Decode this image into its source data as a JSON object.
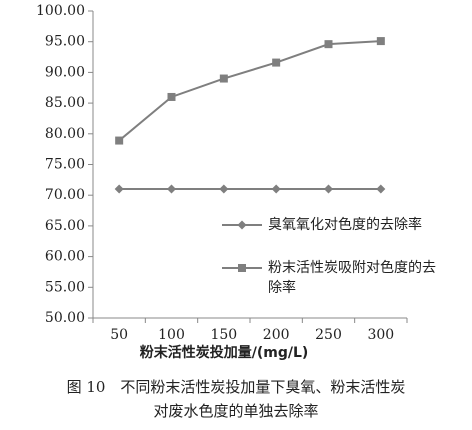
{
  "chart_data": {
    "type": "line",
    "categories": [
      "50",
      "100",
      "150",
      "200",
      "250",
      "300"
    ],
    "series": [
      {
        "name": "臭氧氧化对色度的去除率",
        "color": "#7f7f7f",
        "marker": "diamond",
        "values": [
          71.0,
          71.0,
          71.0,
          71.0,
          71.0,
          71.0
        ]
      },
      {
        "name": "粉末活性炭吸附对色度的去除率",
        "color": "#7f7f7f",
        "marker": "square",
        "values": [
          78.9,
          86.0,
          89.0,
          91.6,
          94.6,
          95.1
        ]
      }
    ],
    "ylim": [
      50,
      100
    ],
    "yticks": [
      {
        "value": 50,
        "label": "50.00"
      },
      {
        "value": 55,
        "label": "55.00"
      },
      {
        "value": 60,
        "label": "60.00"
      },
      {
        "value": 65,
        "label": "65.00"
      },
      {
        "value": 70,
        "label": "70.00"
      },
      {
        "value": 75,
        "label": "75.00"
      },
      {
        "value": 80,
        "label": "80.00"
      },
      {
        "value": 85,
        "label": "85.00"
      },
      {
        "value": 90,
        "label": "90.00"
      },
      {
        "value": 95,
        "label": "95.00"
      },
      {
        "value": 100,
        "label": "100.00"
      }
    ],
    "xlabel": "粉末活性炭投加量/(mg/L)",
    "grid": false,
    "legend": "inside-right",
    "caption_lines": [
      "图 10　不同粉末活性炭投加量下臭氧、粉末活性炭",
      "对废水色度的单独去除率"
    ]
  }
}
